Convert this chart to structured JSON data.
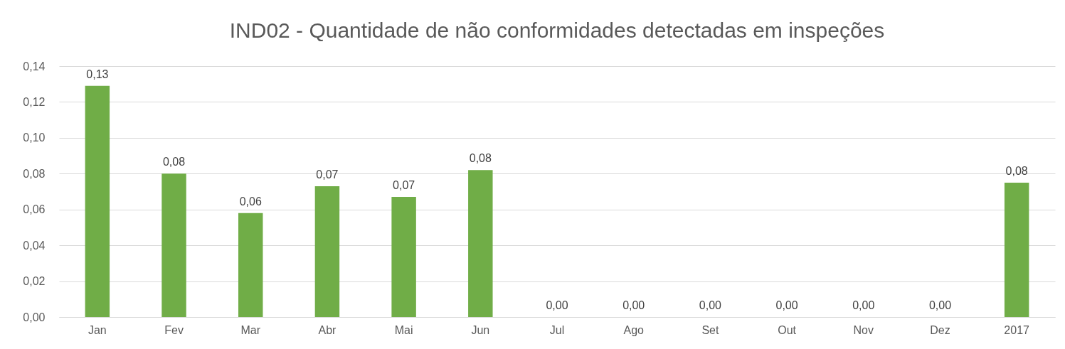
{
  "chart_data": {
    "type": "bar",
    "title": "IND02 - Quantidade de não conformidades detectadas em inspeções",
    "categories": [
      "Jan",
      "Fev",
      "Mar",
      "Abr",
      "Mai",
      "Jun",
      "Jul",
      "Ago",
      "Set",
      "Out",
      "Nov",
      "Dez",
      "2017"
    ],
    "values": [
      0.129,
      0.08,
      0.058,
      0.073,
      0.067,
      0.082,
      0,
      0,
      0,
      0,
      0,
      0,
      0.075
    ],
    "value_labels": [
      "0,13",
      "0,08",
      "0,06",
      "0,07",
      "0,07",
      "0,08",
      "0,00",
      "0,00",
      "0,00",
      "0,00",
      "0,00",
      "0,00",
      "0,08"
    ],
    "color": "#70ad47",
    "ylim": [
      0,
      0.14
    ],
    "yticks": [
      {
        "value": 0,
        "label": "0,00"
      },
      {
        "value": 0.02,
        "label": "0,02"
      },
      {
        "value": 0.04,
        "label": "0,04"
      },
      {
        "value": 0.06,
        "label": "0,06"
      },
      {
        "value": 0.08,
        "label": "0,08"
      },
      {
        "value": 0.1,
        "label": "0,10"
      },
      {
        "value": 0.12,
        "label": "0,12"
      },
      {
        "value": 0.14,
        "label": "0,14"
      }
    ],
    "grid": "y"
  }
}
